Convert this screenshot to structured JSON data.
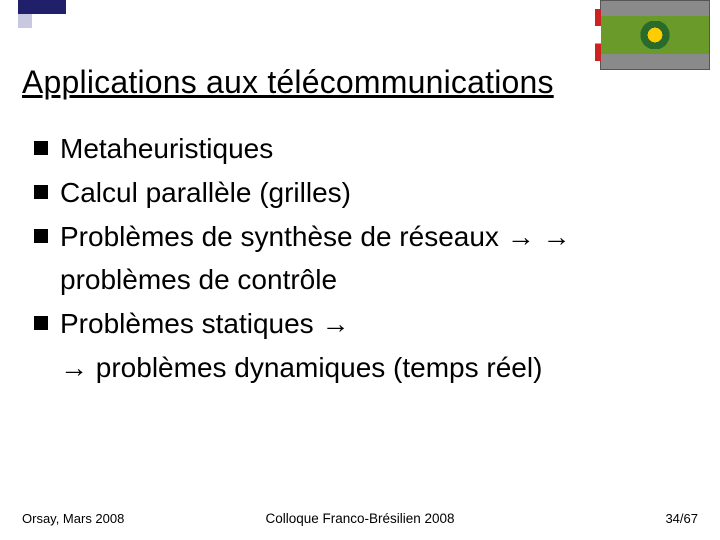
{
  "accent": {
    "primary_color": "#1f1f6a",
    "secondary_color": "#c8c8e0"
  },
  "title": "Applications aux télécommunications",
  "bullets": [
    {
      "text": "Metaheuristiques"
    },
    {
      "text": "Calcul parallèle (grilles)"
    },
    {
      "text": "Problèmes de synthèse de réseaux →    →",
      "cont": "problèmes de contrôle"
    },
    {
      "text": "Problèmes statiques →",
      "cont": "→ problèmes dynamiques (temps réel)"
    }
  ],
  "footer": {
    "left": "Orsay, Mars 2008",
    "center": "Colloque Franco-Brésilien 2008",
    "right": "34/67"
  }
}
